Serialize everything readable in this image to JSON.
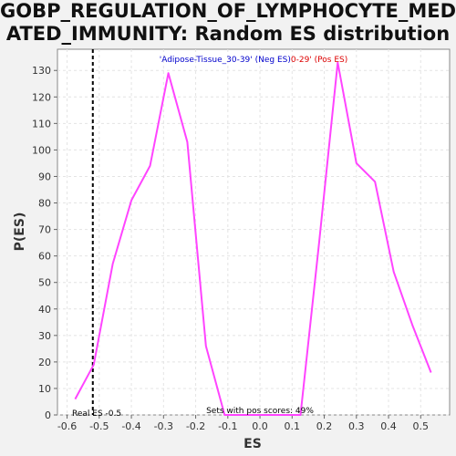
{
  "title_line1": "GOBP_REGULATION_OF_LYMPHOCYTE_MEDI",
  "title_line2": "ATED_IMMUNITY: Random ES distribution",
  "chart_data": {
    "type": "line",
    "xlabel": "ES",
    "ylabel": "P(ES)",
    "xlim": [
      -0.63,
      0.59
    ],
    "ylim": [
      0,
      138
    ],
    "xticks": [
      -0.6,
      -0.5,
      -0.4,
      -0.3,
      -0.2,
      -0.1,
      0.0,
      0.1,
      0.2,
      0.3,
      0.4,
      0.5
    ],
    "xtick_labels": [
      "-0.6",
      "-0.5",
      "-0.4",
      "-0.3",
      "-0.2",
      "-0.1",
      "0.0",
      "0.1",
      "0.2",
      "0.3",
      "0.4",
      "0.5"
    ],
    "yticks": [
      0,
      10,
      20,
      30,
      40,
      50,
      60,
      70,
      80,
      90,
      100,
      110,
      120,
      130
    ],
    "ytick_labels": [
      "0",
      "10",
      "20",
      "30",
      "40",
      "50",
      "60",
      "70",
      "80",
      "90",
      "100",
      "110",
      "120",
      "130"
    ],
    "grid": true,
    "series": [
      {
        "color": "#ff44ff",
        "x": [
          -0.575,
          -0.517,
          -0.458,
          -0.4,
          -0.342,
          -0.285,
          -0.226,
          -0.168,
          -0.11,
          -0.05,
          0.01,
          0.068,
          0.126,
          0.184,
          0.242,
          0.3,
          0.358,
          0.416,
          0.474,
          0.532
        ],
        "y": [
          6,
          19,
          57,
          81,
          94,
          129,
          103,
          26,
          0,
          0,
          0,
          0,
          0,
          65,
          133,
          95,
          88,
          54,
          34,
          16
        ]
      }
    ],
    "real_es": -0.52,
    "real_es_label": "Real ES -0.5",
    "legend_neg": "'Adipose-Tissue_30-39' (Neg ES)",
    "legend_pos": "0-29' (Pos ES)",
    "legend_neg_color": "#0000cc",
    "legend_pos_color": "#dd0000",
    "pos_scores_label": "Sets with pos scores: 49%"
  }
}
